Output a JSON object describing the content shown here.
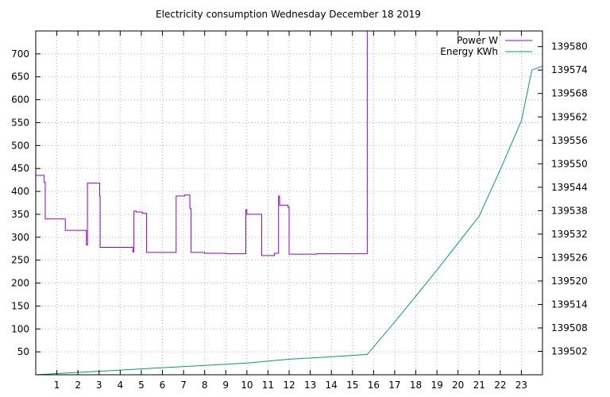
{
  "chart_data": {
    "type": "line",
    "title": "Electricity consumption Wednesday December 18 2019",
    "xlabel": "",
    "ylabel": "",
    "y2label": "",
    "xlim": [
      0,
      24
    ],
    "ylim": [
      0,
      750
    ],
    "y2lim": [
      139496,
      139584
    ],
    "x_ticks": [
      1,
      2,
      3,
      4,
      5,
      6,
      7,
      8,
      9,
      10,
      11,
      12,
      13,
      14,
      15,
      16,
      17,
      18,
      19,
      20,
      21,
      22,
      23
    ],
    "y_ticks": [
      50,
      100,
      150,
      200,
      250,
      300,
      350,
      400,
      450,
      500,
      550,
      600,
      650,
      700
    ],
    "y2_ticks": [
      139502,
      139508,
      139514,
      139520,
      139526,
      139532,
      139538,
      139544,
      139550,
      139556,
      139562,
      139568,
      139574,
      139580
    ],
    "grid": true,
    "legend_position": "top-right",
    "series": [
      {
        "name": "Power W",
        "color": "#9400d3",
        "axis": "left",
        "step": true,
        "x": [
          0,
          0.35,
          0.4,
          0.45,
          1.4,
          2.4,
          2.4,
          2.45,
          2.45,
          3.0,
          3.03,
          3.05,
          3.05,
          4.6,
          4.6,
          4.65,
          4.75,
          5.05,
          5.25,
          6.6,
          6.65,
          6.65,
          7.0,
          7.05,
          7.3,
          7.35,
          8.0,
          9.0,
          9.9,
          9.95,
          10.0,
          10.65,
          10.7,
          11.25,
          11.3,
          11.5,
          11.55,
          11.9,
          11.95,
          12.0,
          13.0,
          13.3,
          15.65,
          15.7
        ],
        "values": [
          435,
          435,
          420,
          340,
          315,
          315,
          283,
          283,
          418,
          418,
          390,
          375,
          278,
          278,
          268,
          357,
          355,
          352,
          267,
          267,
          270,
          390,
          390,
          392,
          363,
          267,
          265,
          264,
          264,
          360,
          350,
          350,
          260,
          260,
          265,
          390,
          370,
          370,
          365,
          263,
          263,
          264,
          264,
          750
        ],
        "x_end": 15.7
      },
      {
        "name": "Energy KWh",
        "color": "#009e73",
        "axis": "right",
        "step": false,
        "x": [
          0,
          2,
          4,
          6,
          8,
          10,
          12,
          14,
          15.7,
          17,
          19,
          21,
          22,
          23,
          23.5,
          24
        ],
        "values": [
          139496.0,
          139496.6,
          139497.2,
          139497.8,
          139498.4,
          139499.0,
          139500.0,
          139500.6,
          139501.2,
          139509.5,
          139522.8,
          139536.6,
          139548.5,
          139561.0,
          139574.0,
          139575.0
        ]
      }
    ]
  }
}
